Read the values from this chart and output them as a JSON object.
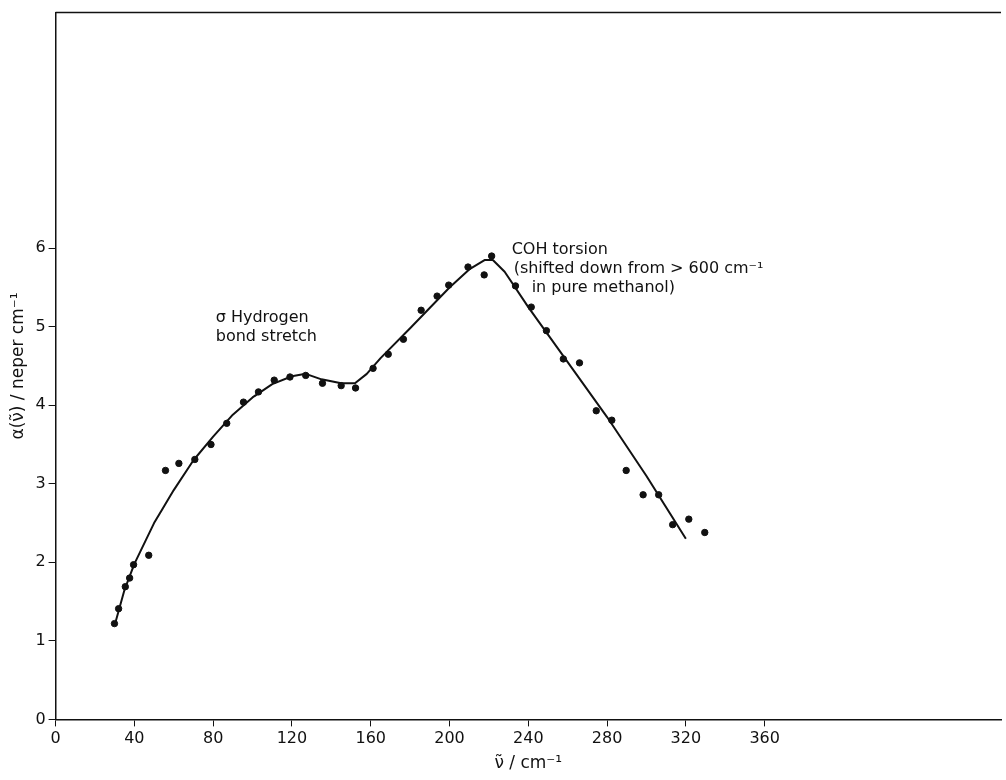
{
  "chart_data": {
    "type": "scatter",
    "xlabel": "ν̃ / cm⁻¹",
    "ylabel": "α(ν̃) / neper cm⁻¹",
    "xlim": [
      0,
      480
    ],
    "ylim": [
      0,
      9
    ],
    "xticks": [
      0,
      40,
      80,
      120,
      160,
      200,
      240,
      280,
      320,
      360
    ],
    "yticks": [
      0,
      1,
      2,
      3,
      4,
      5,
      6
    ],
    "grid": false,
    "legend": false,
    "marker": "circle",
    "series": [
      {
        "color": "#111111",
        "x": [
          29.9,
          32,
          35.4,
          37.6,
          39.6,
          47.3,
          55.8,
          62.6,
          70.7,
          78.9,
          86.9,
          95.4,
          103,
          111,
          119,
          127,
          135.5,
          145,
          152.3,
          161.2,
          168.9,
          176.6,
          185.6,
          193.7,
          199.6,
          209.4,
          217.6,
          221.4,
          233.5,
          241.5,
          249.2,
          257.8,
          266,
          274.5,
          282.4,
          289.7,
          298.3,
          306.2,
          313.3,
          321.5,
          329.6
        ],
        "values": [
          1.22,
          1.41,
          1.69,
          1.8,
          1.97,
          2.09,
          3.17,
          3.26,
          3.31,
          3.5,
          3.77,
          4.04,
          4.17,
          4.32,
          4.36,
          4.38,
          4.28,
          4.25,
          4.22,
          4.47,
          4.65,
          4.84,
          5.21,
          5.39,
          5.53,
          5.76,
          5.66,
          5.9,
          5.52,
          5.25,
          4.95,
          4.59,
          4.54,
          3.93,
          3.81,
          3.17,
          2.86,
          2.86,
          2.48,
          2.55,
          2.38
        ]
      },
      {
        "type": "line",
        "color": "#111111",
        "marker": "none",
        "line_style": "solid",
        "x": [
          30,
          35,
          40,
          50,
          60,
          70,
          80,
          90,
          100,
          110,
          120,
          127,
          135,
          145,
          152,
          158,
          165,
          180,
          200,
          210,
          218,
          222,
          228,
          240,
          260,
          280,
          300,
          320
        ],
        "values": [
          1.2,
          1.65,
          1.98,
          2.5,
          2.92,
          3.3,
          3.6,
          3.88,
          4.1,
          4.27,
          4.37,
          4.4,
          4.33,
          4.28,
          4.28,
          4.4,
          4.6,
          4.98,
          5.5,
          5.73,
          5.85,
          5.85,
          5.7,
          5.25,
          4.55,
          3.85,
          3.1,
          2.3
        ]
      }
    ],
    "annotations": [
      {
        "text": "σ Hydrogen\nbond stretch",
        "x": 127,
        "y": 4.4
      },
      {
        "text": "COH torsion\n(shifted down from > 600 cm⁻¹\nin pure methanol)",
        "x": 221.4,
        "y": 5.9
      }
    ]
  }
}
